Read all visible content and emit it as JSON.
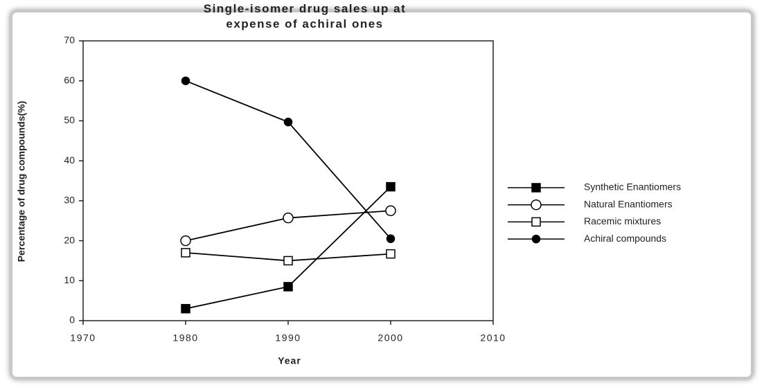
{
  "chart_data": {
    "type": "line",
    "title": "Single-isomer drug sales up at\nexpense of achiral ones",
    "x_label": "Year",
    "y_label": "Percentage of drug compounds(%)",
    "x": [
      1980,
      1990,
      2000
    ],
    "series": [
      {
        "name": "Synthetic Enantiomers",
        "color": "#000000",
        "marker": "square",
        "filled": true,
        "values": [
          3,
          8.5,
          33.5
        ]
      },
      {
        "name": "Natural Enantiomers",
        "color": "#000000",
        "marker": "circle",
        "filled": false,
        "values": [
          20,
          25.7,
          27.5
        ]
      },
      {
        "name": "Racemic mixtures",
        "color": "#000000",
        "marker": "square",
        "filled": false,
        "values": [
          17,
          15,
          16.7
        ]
      },
      {
        "name": "Achiral compounds",
        "color": "#000000",
        "marker": "circle",
        "filled": true,
        "values": [
          60,
          49.7,
          20.5
        ]
      }
    ],
    "xlim": [
      1970,
      2010
    ],
    "xticks": [
      1970,
      1980,
      1990,
      2000,
      2010
    ],
    "ylim": [
      0,
      70
    ],
    "yticks": [
      0,
      10,
      20,
      30,
      40,
      50,
      60,
      70
    ],
    "grid": false,
    "legend": "right"
  }
}
